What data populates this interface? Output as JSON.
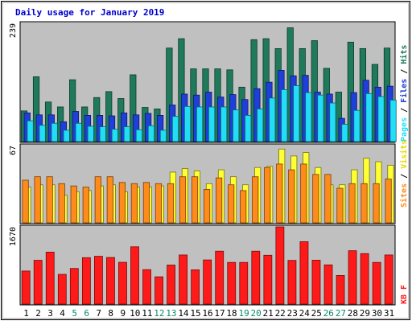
{
  "chart_data": {
    "title": "Daily usage for January 2019",
    "type": "bar",
    "days": [
      "1",
      "2",
      "3",
      "4",
      "5",
      "6",
      "7",
      "8",
      "9",
      "10",
      "11",
      "12",
      "13",
      "14",
      "15",
      "16",
      "17",
      "18",
      "19",
      "20",
      "21",
      "22",
      "23",
      "24",
      "25",
      "26",
      "27",
      "28",
      "29",
      "30",
      "31"
    ],
    "weekend_days": [
      "5",
      "6",
      "12",
      "13",
      "19",
      "20",
      "26",
      "27"
    ],
    "colors": {
      "hits": "#1f7a5c",
      "files": "#1f3fd9",
      "pages": "#22ddf5",
      "visits": "#ffff33",
      "sites": "#ff8c1a",
      "kbf": "#ff1a1a",
      "weekend_label": "#0a8a6a",
      "weekday_label": "#000000",
      "title": "#0000cc",
      "plot_bg": "#c0c0c0"
    },
    "panel_top": {
      "max_label": "239",
      "ymax": 239,
      "right_labels": {
        "pages": "Pages",
        "files": "Files",
        "hits": "Hits",
        "sep": " / "
      },
      "series": [
        {
          "name": "Hits",
          "key": "hits",
          "values": [
            62,
            131,
            80,
            70,
            125,
            70,
            89,
            101,
            87,
            135,
            69,
            66,
            189,
            208,
            147,
            147,
            147,
            145,
            110,
            206,
            208,
            188,
            230,
            188,
            204,
            148,
            100,
            201,
            188,
            156,
            189
          ]
        },
        {
          "name": "Files",
          "key": "files",
          "values": [
            58,
            54,
            54,
            40,
            61,
            53,
            53,
            52,
            58,
            54,
            57,
            53,
            74,
            96,
            94,
            100,
            90,
            95,
            85,
            107,
            120,
            144,
            133,
            134,
            100,
            96,
            47,
            99,
            124,
            110,
            112
          ]
        },
        {
          "name": "Pages",
          "key": "pages",
          "values": [
            42,
            33,
            37,
            23,
            37,
            31,
            30,
            25,
            30,
            24,
            32,
            23,
            51,
            71,
            70,
            70,
            70,
            64,
            53,
            66,
            88,
            105,
            113,
            99,
            94,
            78,
            35,
            63,
            97,
            91,
            84
          ]
        }
      ]
    },
    "panel_mid": {
      "max_label": "67",
      "ymax": 67,
      "right_labels": {
        "sites": "Sites",
        "visits": "Visits",
        "sep": " / "
      },
      "series": [
        {
          "name": "Visits",
          "key": "visits",
          "values": [
            31,
            33,
            33,
            24,
            27,
            28,
            32,
            33,
            27,
            31,
            31,
            32,
            44,
            47,
            45,
            34,
            46,
            40,
            33,
            48,
            49,
            64,
            58,
            61,
            48,
            33,
            33,
            46,
            56,
            53,
            50
          ]
        },
        {
          "name": "Sites",
          "key": "sites",
          "values": [
            37,
            40,
            40,
            34,
            32,
            31,
            40,
            40,
            35,
            34,
            35,
            34,
            34,
            40,
            40,
            29,
            39,
            33,
            28,
            40,
            48,
            51,
            46,
            51,
            42,
            42,
            30,
            34,
            34,
            34,
            38
          ]
        }
      ]
    },
    "panel_bot": {
      "max_label": "1670",
      "ymax": 1670,
      "right_labels": {
        "kbf": "KB F"
      },
      "series": [
        {
          "name": "KB F",
          "key": "kbf",
          "values": [
            715,
            947,
            1124,
            643,
            770,
            1004,
            1034,
            1008,
            903,
            1239,
            745,
            590,
            844,
            1062,
            741,
            955,
            1144,
            901,
            901,
            1144,
            1056,
            1670,
            945,
            1350,
            949,
            848,
            619,
            1154,
            1092,
            901,
            1062
          ]
        }
      ]
    }
  }
}
